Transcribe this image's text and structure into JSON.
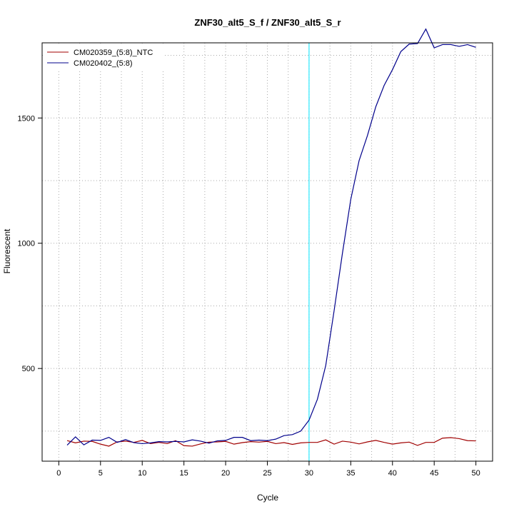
{
  "chart_data": {
    "type": "line",
    "title": "ZNF30_alt5_S_f / ZNF30_alt5_S_r",
    "xlabel": "Cycle",
    "ylabel": "Fluorescent",
    "xlim": [
      -2,
      52
    ],
    "ylim": [
      130,
      1800
    ],
    "x_ticks": [
      0,
      5,
      10,
      15,
      20,
      25,
      30,
      35,
      40,
      45,
      50
    ],
    "y_ticks": [
      500,
      1000,
      1500
    ],
    "grid": true,
    "legend_position": "top-left",
    "threshold_line": {
      "x": 30,
      "color": "#00e5ff"
    },
    "x": [
      1,
      2,
      3,
      4,
      5,
      6,
      7,
      8,
      9,
      10,
      11,
      12,
      13,
      14,
      15,
      16,
      17,
      18,
      19,
      20,
      21,
      22,
      23,
      24,
      25,
      26,
      27,
      28,
      29,
      30,
      31,
      32,
      33,
      34,
      35,
      36,
      37,
      38,
      39,
      40,
      41,
      42,
      43,
      44,
      45,
      46,
      47,
      48,
      49,
      50
    ],
    "series": [
      {
        "name": "CM020359_(5:8)_NTC",
        "color": "#a00000",
        "values": [
          212,
          203,
          210,
          209,
          198,
          190,
          207,
          210,
          205,
          213,
          200,
          205,
          200,
          212,
          192,
          190,
          199,
          206,
          207,
          209,
          198,
          204,
          208,
          206,
          209,
          200,
          204,
          197,
          203,
          205,
          205,
          215,
          198,
          210,
          206,
          199,
          207,
          213,
          205,
          198,
          203,
          206,
          193,
          205,
          205,
          222,
          224,
          220,
          212,
          211
        ]
      },
      {
        "name": "CM020402_(5:8)",
        "color": "#00008b",
        "values": [
          194,
          227,
          195,
          214,
          213,
          225,
          205,
          216,
          204,
          200,
          203,
          208,
          207,
          209,
          207,
          215,
          210,
          202,
          211,
          213,
          225,
          225,
          212,
          214,
          212,
          218,
          232,
          236,
          250,
          294,
          377,
          512,
          730,
          960,
          1175,
          1330,
          1430,
          1545,
          1630,
          1693,
          1765,
          1795,
          1797,
          1855,
          1780,
          1793,
          1793,
          1786,
          1793,
          1782
        ]
      }
    ]
  }
}
